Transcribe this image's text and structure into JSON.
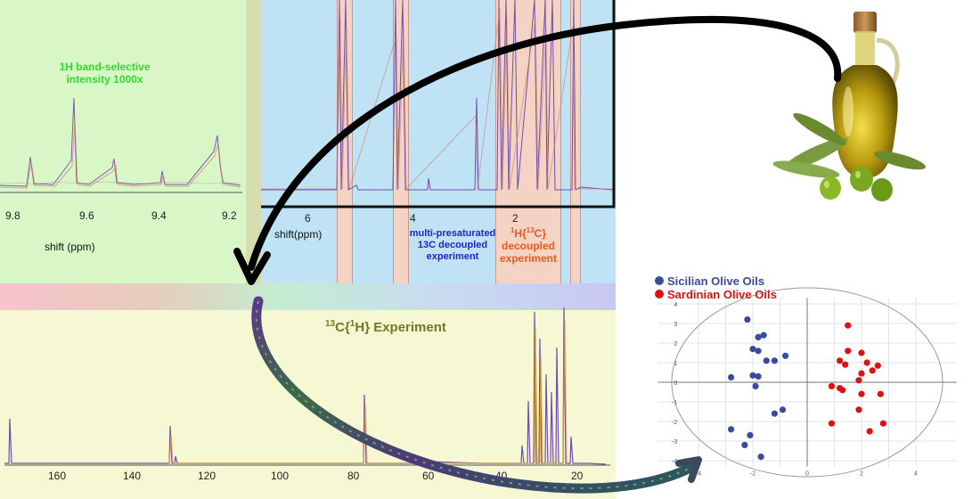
{
  "panel_1h_selective": {
    "label_line1": "1H band-selective",
    "label_line2": "intensity 1000x",
    "ticks": [
      "9.8",
      "9.6",
      "9.4",
      "9.2"
    ],
    "axis_label": "shift (ppm)",
    "color": "#2fdc2f"
  },
  "panel_1h_main": {
    "ticks": [
      "6",
      "4",
      "2"
    ],
    "axis_label": "shift(ppm)",
    "presat_line1": "multi-presaturated",
    "presat_line2": "13C decoupled",
    "presat_line3": "experiment",
    "presat_color": "#2222cc",
    "decoupled_color": "#e85a1e"
  },
  "panel_13c": {
    "ticks": [
      "160",
      "140",
      "120",
      "100",
      "80",
      "60",
      "40",
      "20"
    ],
    "title_color": "#777722"
  },
  "scatter": {
    "legend": [
      {
        "name": "Sicilian Olive Oils",
        "color": "#3a4aa0"
      },
      {
        "name": "Sardinian Olive Oils",
        "color": "#dd1111"
      }
    ],
    "x_ticks": [
      "-4",
      "-2",
      "0",
      "2",
      "4"
    ],
    "y_ticks": [
      "4",
      "3",
      "2",
      "1",
      "0",
      "-1",
      "-2",
      "-3",
      "-4"
    ]
  },
  "chart_data": {
    "type": "scatter",
    "xlim": [
      -4,
      4
    ],
    "ylim": [
      -4,
      4
    ],
    "grid": true,
    "legend_position": "top-left",
    "series": [
      {
        "name": "Sicilian Olive Oils",
        "points": [
          [
            -2.2,
            3.2
          ],
          [
            -1.8,
            2.3
          ],
          [
            -1.6,
            2.4
          ],
          [
            -2.0,
            1.7
          ],
          [
            -1.8,
            1.6
          ],
          [
            -1.5,
            1.1
          ],
          [
            -1.2,
            1.1
          ],
          [
            -0.8,
            1.35
          ],
          [
            -2.8,
            0.25
          ],
          [
            -2.0,
            0.35
          ],
          [
            -1.8,
            0.3
          ],
          [
            -1.9,
            -0.2
          ],
          [
            -1.2,
            -1.6
          ],
          [
            -0.9,
            -1.4
          ],
          [
            -2.8,
            -2.4
          ],
          [
            -2.1,
            -2.7
          ],
          [
            -2.3,
            -3.2
          ],
          [
            -1.7,
            -3.8
          ]
        ]
      },
      {
        "name": "Sardinian Olive Oils",
        "points": [
          [
            1.5,
            2.9
          ],
          [
            1.5,
            1.6
          ],
          [
            2.0,
            1.5
          ],
          [
            1.2,
            1.1
          ],
          [
            1.4,
            0.9
          ],
          [
            2.2,
            1.0
          ],
          [
            2.6,
            0.85
          ],
          [
            2.4,
            0.6
          ],
          [
            2.0,
            0.45
          ],
          [
            1.9,
            0.1
          ],
          [
            1.2,
            -0.3
          ],
          [
            0.9,
            -0.2
          ],
          [
            1.3,
            -0.4
          ],
          [
            2.0,
            -0.6
          ],
          [
            2.7,
            -0.6
          ],
          [
            1.9,
            -1.4
          ],
          [
            0.9,
            -2.1
          ],
          [
            2.8,
            -2.1
          ],
          [
            2.3,
            -2.5
          ]
        ]
      }
    ]
  }
}
